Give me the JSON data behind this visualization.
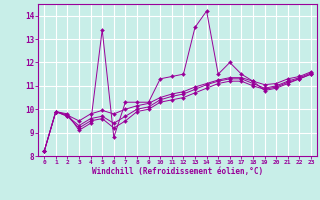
{
  "xlabel": "Windchill (Refroidissement éolien,°C)",
  "background_color": "#c8eee8",
  "grid_color": "#b0ddd8",
  "line_color": "#990099",
  "xlim": [
    -0.5,
    23.5
  ],
  "ylim": [
    8.0,
    14.5
  ],
  "yticks": [
    8,
    9,
    10,
    11,
    12,
    13,
    14
  ],
  "xticks": [
    0,
    1,
    2,
    3,
    4,
    5,
    6,
    7,
    8,
    9,
    10,
    11,
    12,
    13,
    14,
    15,
    16,
    17,
    18,
    19,
    20,
    21,
    22,
    23
  ],
  "series": [
    [
      8.2,
      9.9,
      9.8,
      9.1,
      9.4,
      13.4,
      8.8,
      10.3,
      10.3,
      10.3,
      11.3,
      11.4,
      11.5,
      13.5,
      14.2,
      11.5,
      12.0,
      11.5,
      11.2,
      10.8,
      10.9,
      11.1,
      11.3,
      11.5
    ],
    [
      8.2,
      9.9,
      9.7,
      9.2,
      9.5,
      9.6,
      9.2,
      9.5,
      9.9,
      10.0,
      10.3,
      10.4,
      10.5,
      10.7,
      10.9,
      11.1,
      11.2,
      11.2,
      11.0,
      10.85,
      10.95,
      11.15,
      11.3,
      11.5
    ],
    [
      8.2,
      9.9,
      9.7,
      9.3,
      9.6,
      9.7,
      9.4,
      9.7,
      10.0,
      10.1,
      10.4,
      10.55,
      10.65,
      10.85,
      11.05,
      11.2,
      11.3,
      11.3,
      11.1,
      10.9,
      11.0,
      11.2,
      11.35,
      11.55
    ],
    [
      8.2,
      9.9,
      9.75,
      9.5,
      9.8,
      9.95,
      9.8,
      10.0,
      10.15,
      10.25,
      10.5,
      10.65,
      10.75,
      10.95,
      11.1,
      11.25,
      11.35,
      11.35,
      11.2,
      11.05,
      11.1,
      11.3,
      11.4,
      11.6
    ]
  ]
}
